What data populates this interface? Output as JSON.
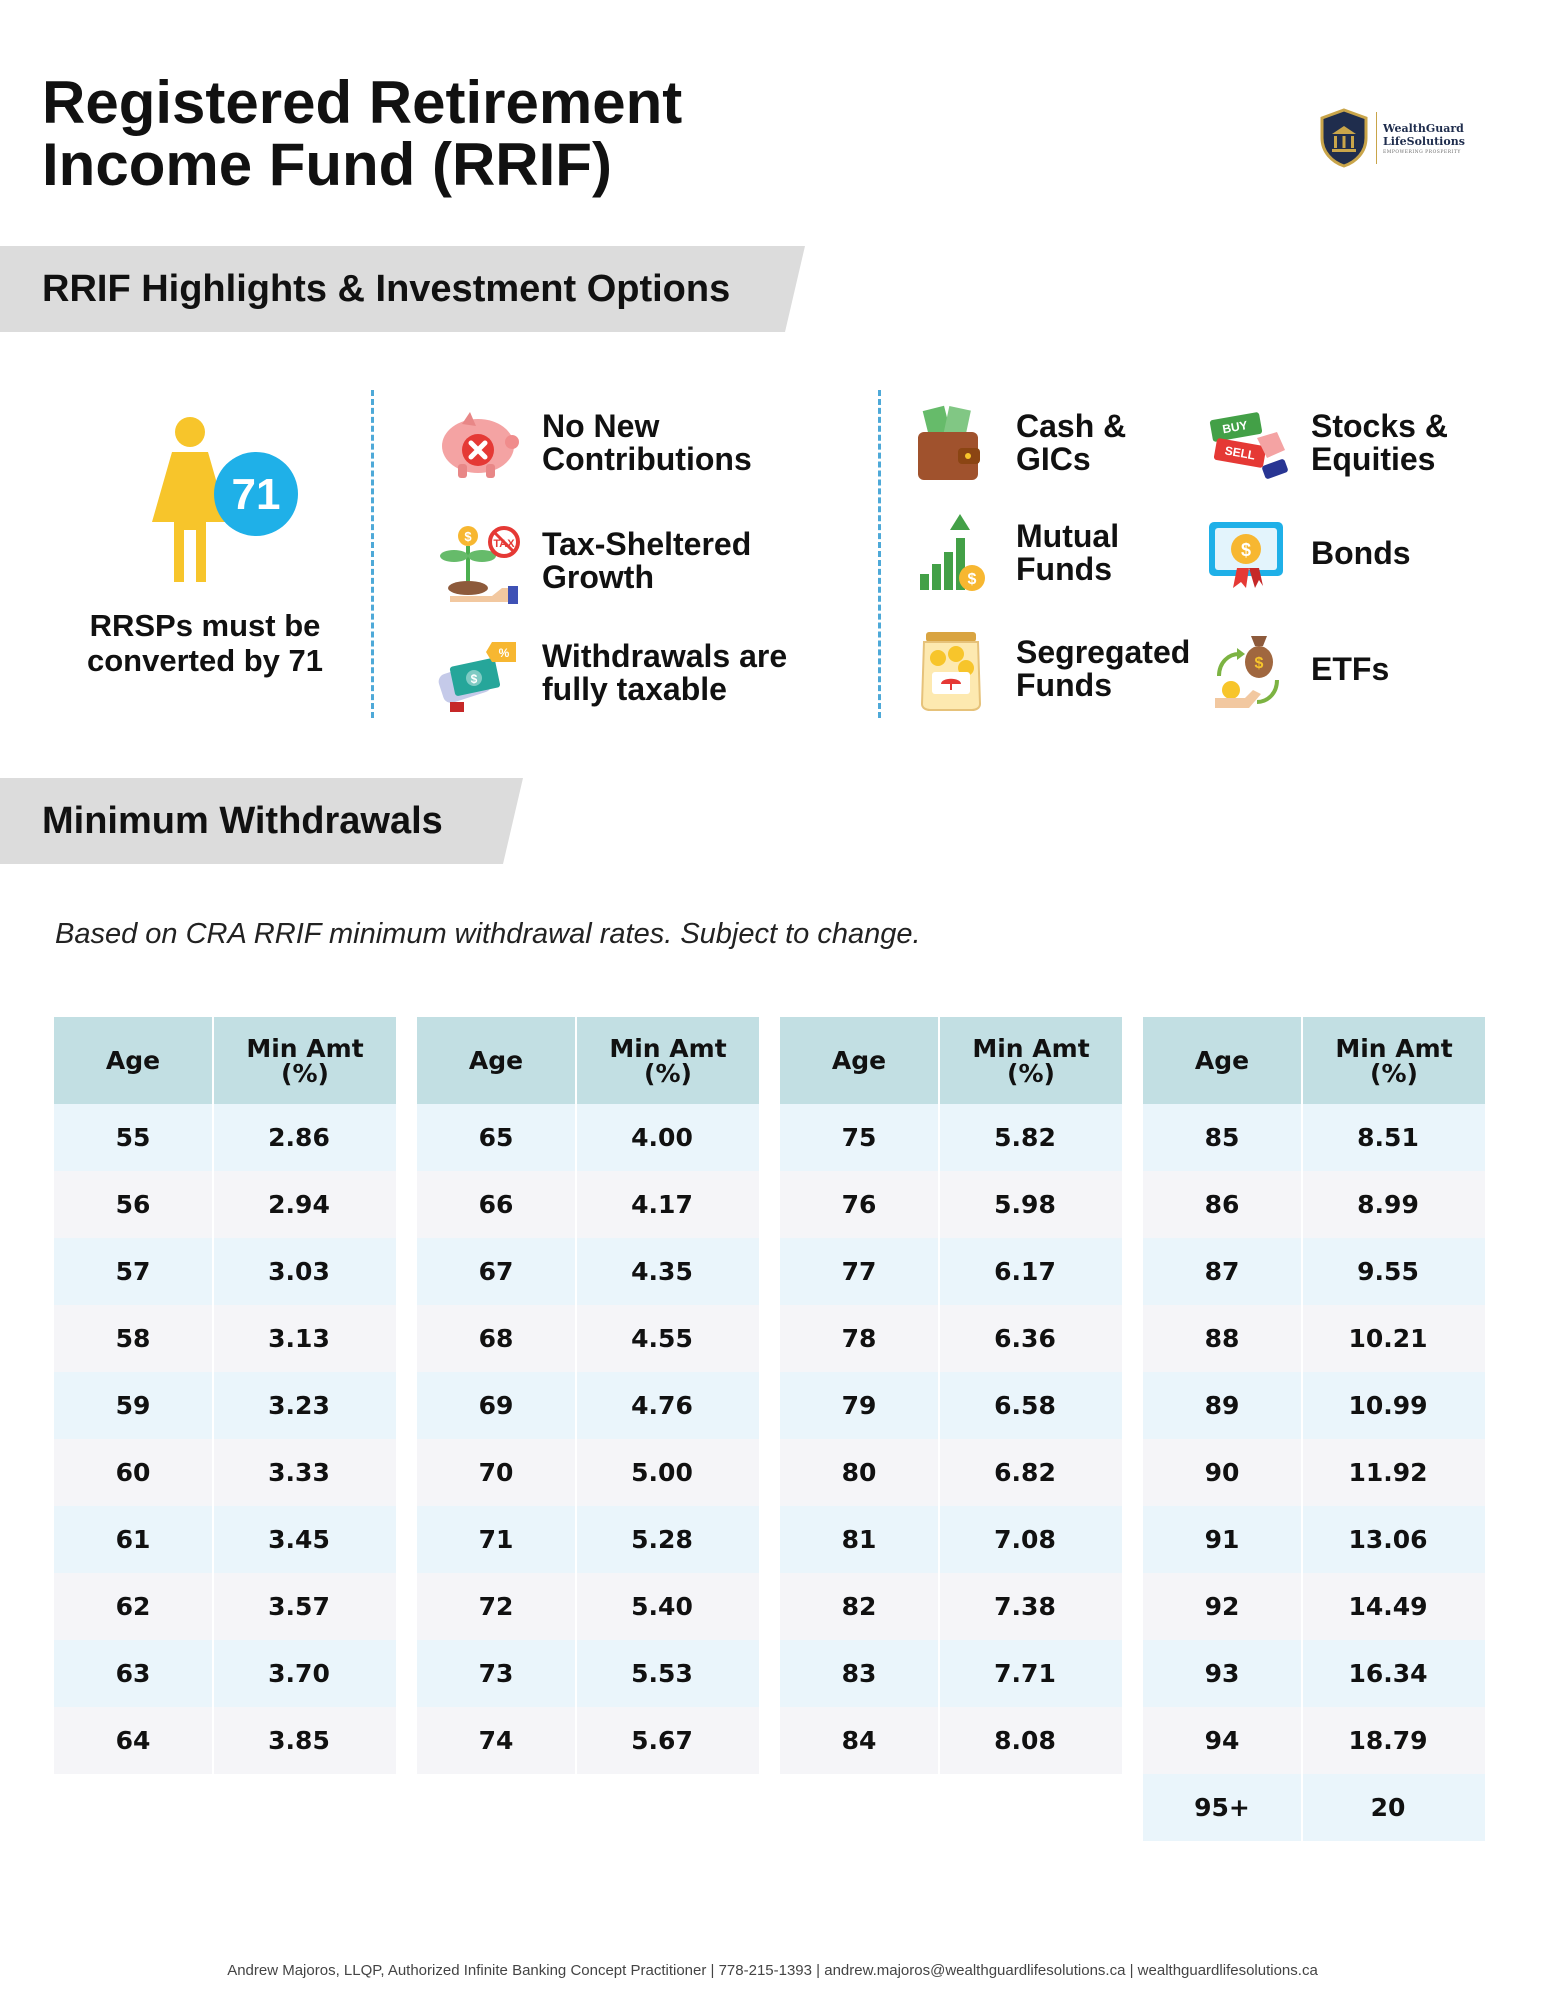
{
  "title": {
    "line1": "Registered Retirement",
    "line2": "Income Fund (RRIF)"
  },
  "logo": {
    "name_line1": "WealthGuard",
    "name_line2": "LifeSolutions",
    "tagline": "EMPOWERING PROSPERITY"
  },
  "sections": {
    "highlights": "RRIF Highlights & Investment Options",
    "withdrawals": "Minimum Withdrawals"
  },
  "conversion": {
    "age_badge": "71",
    "caption_line1": "RRSPs must be",
    "caption_line2": "converted by 71",
    "icon": "woman-icon"
  },
  "highlights": [
    {
      "icon": "piggy-bank-no-icon",
      "label": "No New\nContributions"
    },
    {
      "icon": "tax-sheltered-plant-icon",
      "label": "Tax-Sheltered\nGrowth"
    },
    {
      "icon": "taxable-withdrawal-icon",
      "label": "Withdrawals are\nfully taxable"
    }
  ],
  "investment_options": [
    {
      "icon": "wallet-cash-icon",
      "label": "Cash &\nGICs"
    },
    {
      "icon": "stocks-buy-sell-icon",
      "label": "Stocks &\nEquities"
    },
    {
      "icon": "growth-chart-icon",
      "label": "Mutual\nFunds"
    },
    {
      "icon": "bond-certificate-icon",
      "label": "Bonds"
    },
    {
      "icon": "savings-jar-icon",
      "label": "Segregated\nFunds"
    },
    {
      "icon": "money-bag-cycle-icon",
      "label": "ETFs"
    }
  ],
  "note": "Based on CRA RRIF minimum withdrawal rates. Subject to change.",
  "table": {
    "header_age": "Age",
    "header_min_line1": "Min Amt",
    "header_min_line2": "(%)",
    "groups": [
      [
        [
          "55",
          "2.86"
        ],
        [
          "56",
          "2.94"
        ],
        [
          "57",
          "3.03"
        ],
        [
          "58",
          "3.13"
        ],
        [
          "59",
          "3.23"
        ],
        [
          "60",
          "3.33"
        ],
        [
          "61",
          "3.45"
        ],
        [
          "62",
          "3.57"
        ],
        [
          "63",
          "3.70"
        ],
        [
          "64",
          "3.85"
        ]
      ],
      [
        [
          "65",
          "4.00"
        ],
        [
          "66",
          "4.17"
        ],
        [
          "67",
          "4.35"
        ],
        [
          "68",
          "4.55"
        ],
        [
          "69",
          "4.76"
        ],
        [
          "70",
          "5.00"
        ],
        [
          "71",
          "5.28"
        ],
        [
          "72",
          "5.40"
        ],
        [
          "73",
          "5.53"
        ],
        [
          "74",
          "5.67"
        ]
      ],
      [
        [
          "75",
          "5.82"
        ],
        [
          "76",
          "5.98"
        ],
        [
          "77",
          "6.17"
        ],
        [
          "78",
          "6.36"
        ],
        [
          "79",
          "6.58"
        ],
        [
          "80",
          "6.82"
        ],
        [
          "81",
          "7.08"
        ],
        [
          "82",
          "7.38"
        ],
        [
          "83",
          "7.71"
        ],
        [
          "84",
          "8.08"
        ]
      ],
      [
        [
          "85",
          "8.51"
        ],
        [
          "86",
          "8.99"
        ],
        [
          "87",
          "9.55"
        ],
        [
          "88",
          "10.21"
        ],
        [
          "89",
          "10.99"
        ],
        [
          "90",
          "11.92"
        ],
        [
          "91",
          "13.06"
        ],
        [
          "92",
          "14.49"
        ],
        [
          "93",
          "16.34"
        ],
        [
          "94",
          "18.79"
        ],
        [
          "95+",
          "20"
        ]
      ]
    ]
  },
  "footer": "Andrew Majoros, LLQP, Authorized Infinite Banking Concept Practitioner | 778-215-1393 | andrew.majoros@wealthguardlifesolutions.ca | wealthguardlifesolutions.ca"
}
